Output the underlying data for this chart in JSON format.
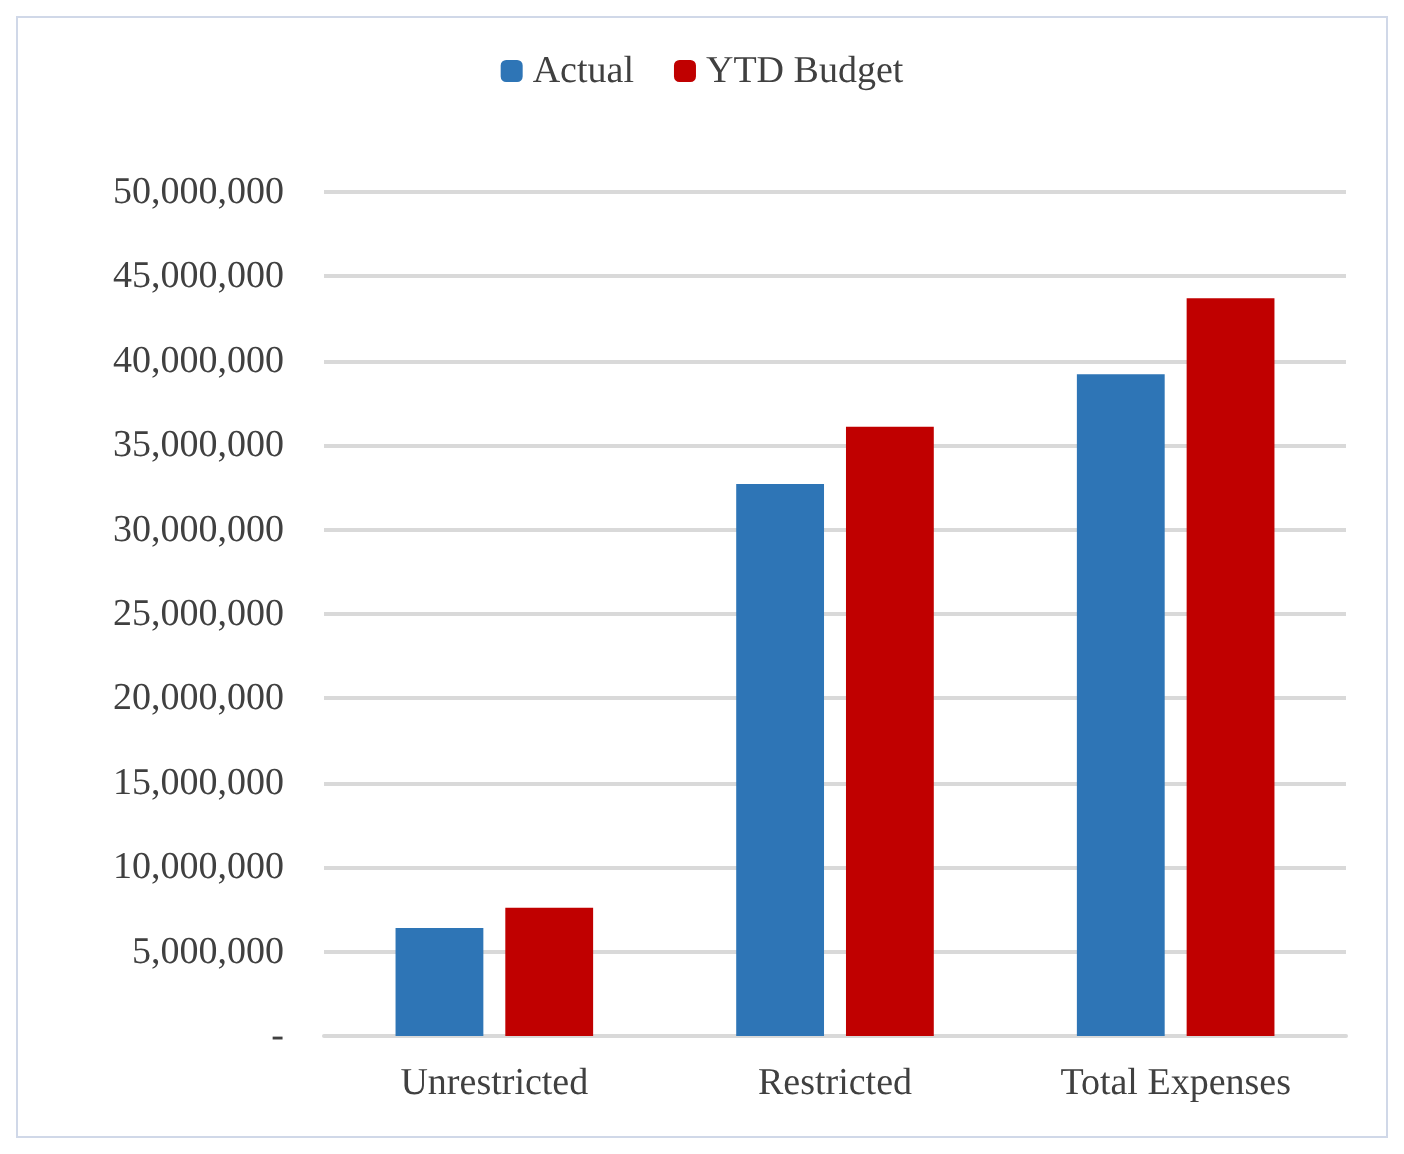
{
  "chart_data": {
    "type": "bar",
    "categories": [
      "Unrestricted",
      "Restricted",
      "Total Expenses"
    ],
    "series": [
      {
        "name": "Actual",
        "color": "#2e75b6",
        "values": [
          6400000,
          32700000,
          39200000
        ]
      },
      {
        "name": "YTD Budget",
        "color": "#c00000",
        "values": [
          7600000,
          36100000,
          43700000
        ]
      }
    ],
    "ylim": [
      0,
      50000000
    ],
    "yticks": [
      {
        "value": 0,
        "label": "-"
      },
      {
        "value": 5000000,
        "label": "5,000,000"
      },
      {
        "value": 10000000,
        "label": "10,000,000"
      },
      {
        "value": 15000000,
        "label": "15,000,000"
      },
      {
        "value": 20000000,
        "label": "20,000,000"
      },
      {
        "value": 25000000,
        "label": "25,000,000"
      },
      {
        "value": 30000000,
        "label": "30,000,000"
      },
      {
        "value": 35000000,
        "label": "35,000,000"
      },
      {
        "value": 40000000,
        "label": "40,000,000"
      },
      {
        "value": 45000000,
        "label": "45,000,000"
      },
      {
        "value": 50000000,
        "label": "50,000,000"
      }
    ],
    "grid": "y",
    "legend": "top"
  }
}
